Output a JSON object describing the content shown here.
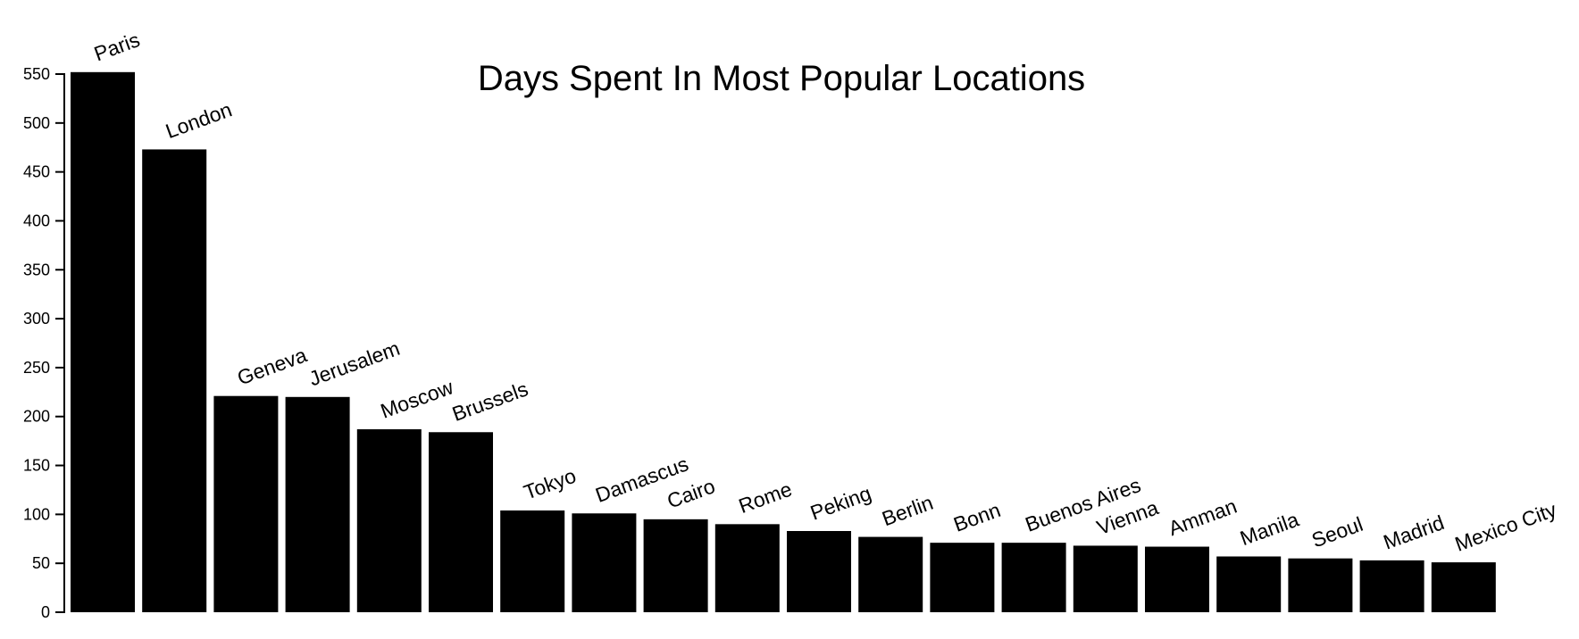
{
  "chart_data": {
    "type": "bar",
    "title": "Days Spent In Most Popular Locations",
    "xlabel": "",
    "ylabel": "",
    "ylim": [
      0,
      550
    ],
    "yticks": [
      "0",
      "50",
      "100",
      "150",
      "200",
      "250",
      "300",
      "350",
      "400",
      "450",
      "500",
      "550"
    ],
    "grid": false,
    "bar_color": "#000000",
    "categories": [
      "Paris",
      "London",
      "Geneva",
      "Jerusalem",
      "Moscow",
      "Brussels",
      "Tokyo",
      "Damascus",
      "Cairo",
      "Rome",
      "Peking",
      "Berlin",
      "Bonn",
      "Buenos Aires",
      "Vienna",
      "Amman",
      "Manila",
      "Seoul",
      "Madrid",
      "Mexico City"
    ],
    "values": [
      552,
      473,
      221,
      220,
      187,
      184,
      104,
      101,
      95,
      90,
      83,
      77,
      71,
      71,
      68,
      67,
      57,
      55,
      53,
      51
    ]
  }
}
